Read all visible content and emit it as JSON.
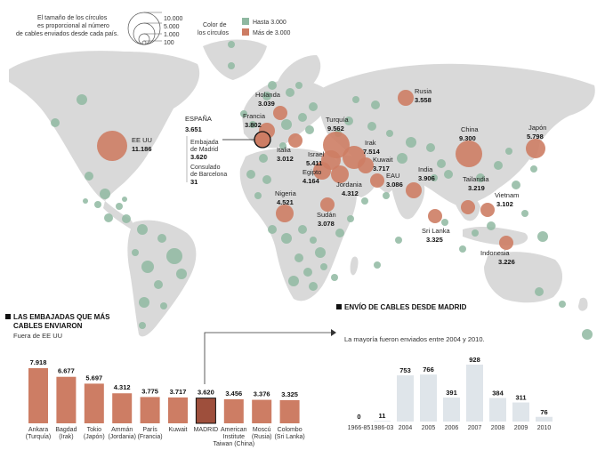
{
  "legend": {
    "size_text": [
      "El tamaño de los círculos",
      "es proporcional al número",
      "de cables enviados desde cada país."
    ],
    "size_values": [
      "10.000",
      "5.000",
      "1.000",
      "100"
    ],
    "color_title": [
      "Color de",
      "los círculos"
    ],
    "color_items": [
      {
        "label": "Hasta 3.000",
        "color": "#8fb8a1"
      },
      {
        "label": "Más de 3.000",
        "color": "#cd7d64"
      }
    ]
  },
  "map": {
    "land_color": "#d9d9d9",
    "small_circle_color": "#8fb8a1",
    "big_circle_color": "#cd7d64",
    "spain": {
      "title": "ESPAÑA",
      "total": "3.651",
      "notes": [
        {
          "label": [
            "Embajada",
            "de Madrid"
          ],
          "value": "3.620"
        },
        {
          "label": [
            "Consulado",
            "de Barcelona"
          ],
          "value": "31"
        }
      ]
    },
    "countries": [
      {
        "name": "EE UU",
        "value": "11.186"
      },
      {
        "name": "Holanda",
        "value": "3.039"
      },
      {
        "name": "Francia",
        "value": "3.802"
      },
      {
        "name": "Italia",
        "value": "3.012"
      },
      {
        "name": "Rusia",
        "value": "3.558"
      },
      {
        "name": "Turquía",
        "value": "9.562"
      },
      {
        "name": "Irak",
        "value": "7.514"
      },
      {
        "name": "Kuwait",
        "value": "3.717"
      },
      {
        "name": "Israel",
        "value": "5.411"
      },
      {
        "name": "Egipto",
        "value": "4.164"
      },
      {
        "name": "EAU",
        "value": "3.086"
      },
      {
        "name": "Jordania",
        "value": "4.312"
      },
      {
        "name": "China",
        "value": "9.300"
      },
      {
        "name": "Japón",
        "value": "5.798"
      },
      {
        "name": "India",
        "value": "3.906"
      },
      {
        "name": "Tailandia",
        "value": "3.219"
      },
      {
        "name": "Vietnam",
        "value": "3.102"
      },
      {
        "name": "Nigeria",
        "value": "4.521"
      },
      {
        "name": "Sudán",
        "value": "3.078"
      },
      {
        "name": "Sri Lanka",
        "value": "3.325"
      },
      {
        "name": "Indonesia",
        "value": "3.226"
      }
    ]
  },
  "chart_data": [
    {
      "type": "bar",
      "title": "LAS EMBAJADAS QUE MÁS CABLES ENVIARON",
      "title_lines": [
        "LAS EMBAJADAS QUE MÁS",
        "CABLES ENVIARON"
      ],
      "subtitle": "Fuera de EE UU",
      "categories": [
        [
          "Ankara",
          "(Turquía)"
        ],
        [
          "Bagdad",
          "(Irak)"
        ],
        [
          "Tokio",
          "(Japón)"
        ],
        [
          "Ammán",
          "(Jordania)"
        ],
        [
          "París",
          "(Francia)"
        ],
        [
          "Kuwait"
        ],
        [
          "MADRID"
        ],
        [
          "American",
          "Institute",
          "Taiwan (China)"
        ],
        [
          "Moscú",
          "(Rusia)"
        ],
        [
          "Colombo",
          "(Sri Lanka)"
        ]
      ],
      "values": [
        7918,
        6677,
        5697,
        4312,
        3775,
        3717,
        3620,
        3456,
        3376,
        3325
      ],
      "value_labels": [
        "7.918",
        "6.677",
        "5.697",
        "4.312",
        "3.775",
        "3.717",
        "3.620",
        "3.456",
        "3.376",
        "3.325"
      ],
      "highlight": "MADRID",
      "color": "#cd7d64",
      "highlight_color": "#9e4f3c"
    },
    {
      "type": "bar",
      "title": "ENVÍO DE CABLES DESDE MADRID",
      "subtitle": "La mayoría fueron enviados entre 2004 y 2010.",
      "categories": [
        "1966-85",
        "1986-03",
        "2004",
        "2005",
        "2006",
        "2007",
        "2008",
        "2009",
        "2010"
      ],
      "values": [
        0,
        11,
        753,
        766,
        391,
        928,
        384,
        311,
        76
      ],
      "value_labels": [
        "0",
        "11",
        "753",
        "766",
        "391",
        "928",
        "384",
        "311",
        "76"
      ],
      "color": "#dfe5ea"
    }
  ]
}
